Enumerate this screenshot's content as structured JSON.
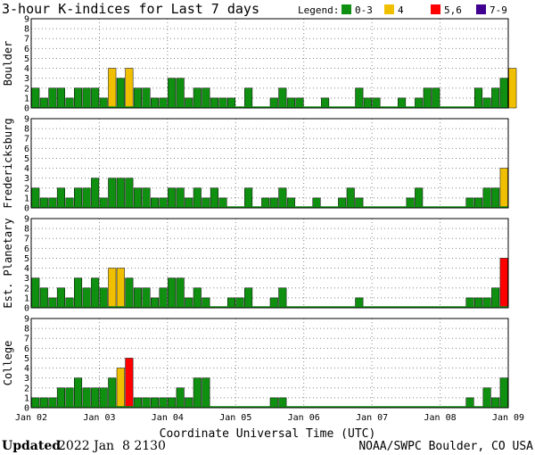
{
  "chart_data": {
    "type": "bar",
    "title": "3-hour K-indices for Last 7 days",
    "legend": {
      "label": "Legend:",
      "position": "top-right",
      "items": [
        {
          "label": "0-3",
          "color": "#109010"
        },
        {
          "label": "4",
          "color": "#f0c000"
        },
        {
          "label": "5,6",
          "color": "#ff0000"
        },
        {
          "label": "7-9",
          "color": "#400090"
        }
      ]
    },
    "ylim": [
      0,
      9
    ],
    "yticks": [
      "0",
      "1",
      "2",
      "3",
      "4",
      "5",
      "6",
      "7",
      "8",
      "9"
    ],
    "grid": "dotted",
    "xlabel": "Coordinate Universal Time (UTC)",
    "xticks": [
      "Jan 02",
      "Jan 03",
      "Jan 04",
      "Jan 05",
      "Jan 06",
      "Jan 07",
      "Jan 08",
      "Jan 09"
    ],
    "interval_hours": 3,
    "panels": [
      {
        "name": "Boulder",
        "values": [
          2,
          1,
          2,
          2,
          1,
          2,
          2,
          2,
          1,
          4,
          3,
          4,
          2,
          2,
          1,
          1,
          3,
          3,
          1,
          2,
          2,
          1,
          1,
          1,
          0,
          2,
          0,
          0,
          1,
          2,
          1,
          1,
          0,
          0,
          1,
          0,
          0,
          0,
          2,
          1,
          1,
          0,
          0,
          1,
          0,
          1,
          2,
          2,
          0,
          0,
          0,
          0,
          2,
          1,
          2,
          3,
          4,
          0
        ]
      },
      {
        "name": "Fredericksburg",
        "values": [
          2,
          1,
          1,
          2,
          1,
          2,
          2,
          3,
          1,
          3,
          3,
          3,
          2,
          2,
          1,
          1,
          2,
          2,
          1,
          2,
          1,
          2,
          1,
          0,
          0,
          2,
          0,
          1,
          1,
          2,
          1,
          0,
          0,
          1,
          0,
          0,
          1,
          2,
          1,
          0,
          0,
          0,
          0,
          0,
          1,
          2,
          0,
          0,
          0,
          0,
          0,
          1,
          1,
          2,
          2,
          4,
          0
        ]
      },
      {
        "name": "Est. Planetary",
        "values": [
          3,
          2,
          1,
          2,
          1,
          3,
          2,
          3,
          2,
          4,
          4,
          3,
          2,
          2,
          1,
          2,
          3,
          3,
          1,
          2,
          1,
          0,
          0,
          1,
          1,
          2,
          0,
          0,
          1,
          2,
          0,
          0,
          0,
          0,
          0,
          0,
          0,
          0,
          1,
          0,
          0,
          0,
          0,
          0,
          0,
          0,
          0,
          0,
          0,
          0,
          0,
          1,
          1,
          1,
          2,
          5,
          0
        ]
      },
      {
        "name": "College",
        "values": [
          1,
          1,
          1,
          2,
          2,
          3,
          2,
          2,
          2,
          3,
          4,
          5,
          1,
          1,
          1,
          1,
          1,
          2,
          1,
          3,
          3,
          0,
          0,
          0,
          0,
          0,
          0,
          0,
          1,
          1,
          0,
          0,
          0,
          0,
          0,
          0,
          0,
          0,
          0,
          0,
          0,
          0,
          0,
          0,
          0,
          0,
          0,
          0,
          0,
          0,
          0,
          1,
          0,
          2,
          1,
          3,
          0
        ]
      }
    ]
  },
  "footer": {
    "updated_label": "Updated",
    "updated_value": "2022 Jan  8 2130",
    "credit": "NOAA/SWPC Boulder, CO USA"
  }
}
